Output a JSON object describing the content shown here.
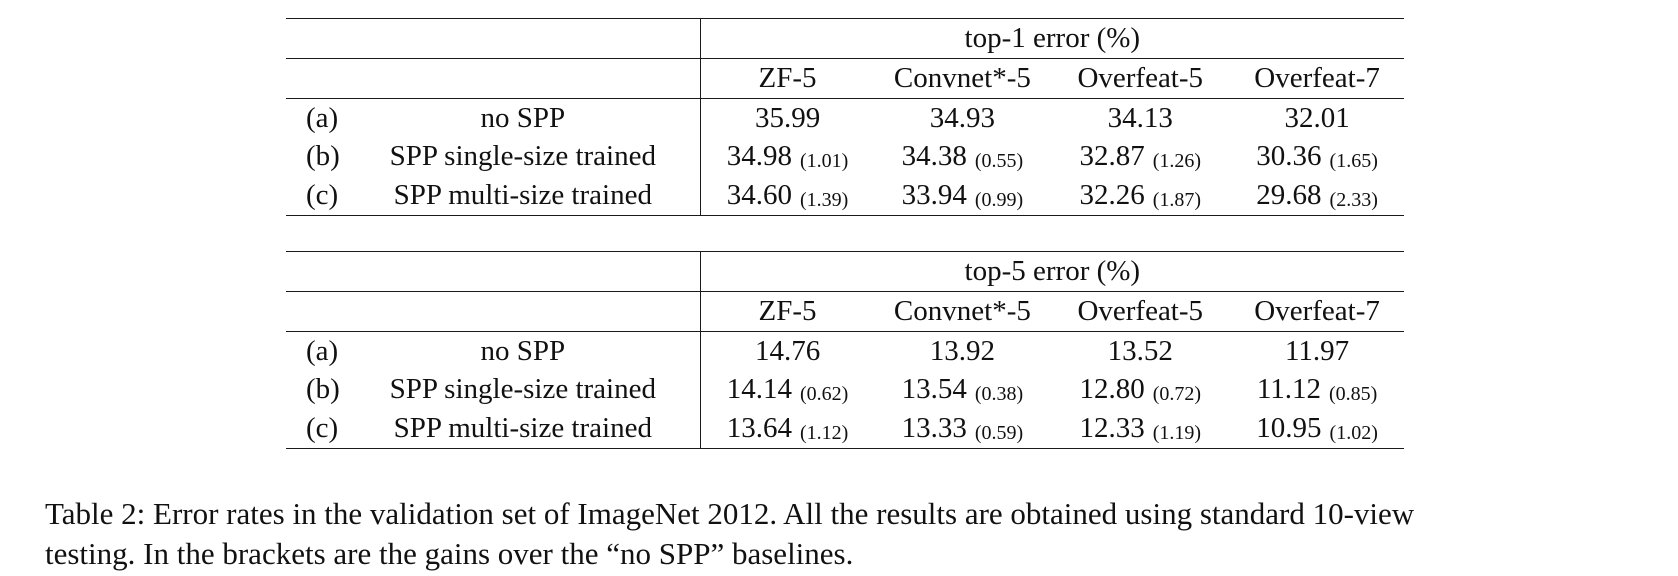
{
  "tables": [
    {
      "group_header": "top-1 error (%)",
      "columns": [
        "ZF-5",
        "Convnet*-5",
        "Overfeat-5",
        "Overfeat-7"
      ],
      "rows": [
        {
          "id": "(a)",
          "method": "no SPP",
          "cells": [
            {
              "value": "35.99",
              "gain": ""
            },
            {
              "value": "34.93",
              "gain": ""
            },
            {
              "value": "34.13",
              "gain": ""
            },
            {
              "value": "32.01",
              "gain": ""
            }
          ]
        },
        {
          "id": "(b)",
          "method": "SPP single-size trained",
          "cells": [
            {
              "value": "34.98",
              "gain": "(1.01)"
            },
            {
              "value": "34.38",
              "gain": "(0.55)"
            },
            {
              "value": "32.87",
              "gain": "(1.26)"
            },
            {
              "value": "30.36",
              "gain": "(1.65)"
            }
          ]
        },
        {
          "id": "(c)",
          "method": "SPP multi-size trained",
          "cells": [
            {
              "value": "34.60",
              "gain": "(1.39)"
            },
            {
              "value": "33.94",
              "gain": "(0.99)"
            },
            {
              "value": "32.26",
              "gain": "(1.87)"
            },
            {
              "value": "29.68",
              "gain": "(2.33)"
            }
          ]
        }
      ]
    },
    {
      "group_header": "top-5 error (%)",
      "columns": [
        "ZF-5",
        "Convnet*-5",
        "Overfeat-5",
        "Overfeat-7"
      ],
      "rows": [
        {
          "id": "(a)",
          "method": "no SPP",
          "cells": [
            {
              "value": "14.76",
              "gain": ""
            },
            {
              "value": "13.92",
              "gain": ""
            },
            {
              "value": "13.52",
              "gain": ""
            },
            {
              "value": "11.97",
              "gain": ""
            }
          ]
        },
        {
          "id": "(b)",
          "method": "SPP single-size trained",
          "cells": [
            {
              "value": "14.14",
              "gain": "(0.62)"
            },
            {
              "value": "13.54",
              "gain": "(0.38)"
            },
            {
              "value": "12.80",
              "gain": "(0.72)"
            },
            {
              "value": "11.12",
              "gain": "(0.85)"
            }
          ]
        },
        {
          "id": "(c)",
          "method": "SPP multi-size trained",
          "cells": [
            {
              "value": "13.64",
              "gain": "(1.12)"
            },
            {
              "value": "13.33",
              "gain": "(0.59)"
            },
            {
              "value": "12.33",
              "gain": "(1.19)"
            },
            {
              "value": "10.95",
              "gain": "(1.02)"
            }
          ]
        }
      ]
    }
  ],
  "caption": {
    "line1": "Table 2: Error rates in the validation set of ImageNet 2012. All the results are obtained using standard 10-view",
    "line2": "testing. In the brackets are the gains over the “no SPP” baselines."
  }
}
